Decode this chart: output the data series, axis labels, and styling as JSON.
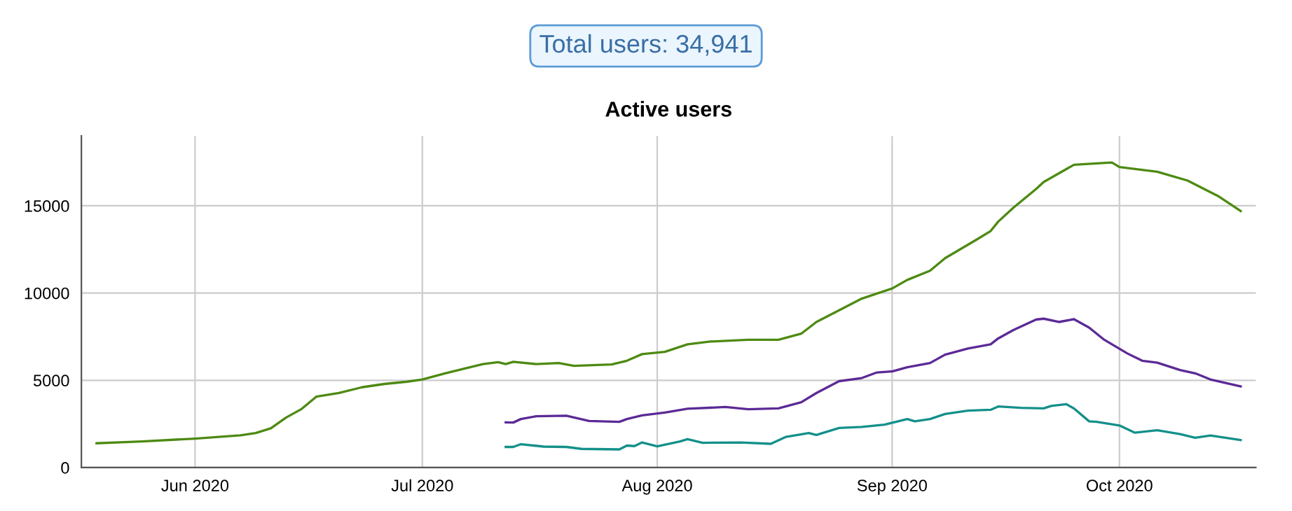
{
  "chart_data": {
    "type": "line",
    "title": "Active users",
    "annotations": [
      "Total users: 34,941"
    ],
    "xlim": [
      "2020-05-17",
      "2020-10-19"
    ],
    "ylim": [
      0,
      19000
    ],
    "yticks": [
      0,
      5000,
      10000,
      15000
    ],
    "xticks": [
      {
        "value": "2020-06-01",
        "label": "Jun 2020"
      },
      {
        "value": "2020-07-01",
        "label": "Jul 2020"
      },
      {
        "value": "2020-08-01",
        "label": "Aug 2020"
      },
      {
        "value": "2020-09-01",
        "label": "Sep 2020"
      },
      {
        "value": "2020-10-01",
        "label": "Oct 2020"
      }
    ],
    "grid": true,
    "legend": false,
    "marker": "none",
    "line_style": "solid",
    "series": [
      {
        "color": "#4d8a12",
        "x": [
          "2020-05-19",
          "2020-05-25",
          "2020-06-01",
          "2020-06-07",
          "2020-06-09",
          "2020-06-11",
          "2020-06-13",
          "2020-06-15",
          "2020-06-17",
          "2020-06-20",
          "2020-06-23",
          "2020-06-26",
          "2020-06-29",
          "2020-07-01",
          "2020-07-04",
          "2020-07-07",
          "2020-07-09",
          "2020-07-11",
          "2020-07-12",
          "2020-07-13",
          "2020-07-16",
          "2020-07-19",
          "2020-07-21",
          "2020-07-26",
          "2020-07-28",
          "2020-07-30",
          "2020-08-02",
          "2020-08-05",
          "2020-08-08",
          "2020-08-13",
          "2020-08-17",
          "2020-08-20",
          "2020-08-22",
          "2020-08-25",
          "2020-08-28",
          "2020-09-01",
          "2020-09-03",
          "2020-09-06",
          "2020-09-08",
          "2020-09-12",
          "2020-09-14",
          "2020-09-15",
          "2020-09-17",
          "2020-09-20",
          "2020-09-21",
          "2020-09-25",
          "2020-09-30",
          "2020-10-01",
          "2020-10-06",
          "2020-10-10",
          "2020-10-14",
          "2020-10-17"
        ],
        "values": [
          1390,
          1500,
          1660,
          1850,
          1980,
          2250,
          2860,
          3340,
          4060,
          4270,
          4600,
          4790,
          4920,
          5050,
          5400,
          5720,
          5930,
          6040,
          5930,
          6060,
          5930,
          5990,
          5830,
          5910,
          6120,
          6500,
          6630,
          7060,
          7220,
          7320,
          7320,
          7670,
          8340,
          9010,
          9680,
          10260,
          10750,
          11280,
          12000,
          13020,
          13550,
          14090,
          14890,
          15960,
          16360,
          17350,
          17480,
          17220,
          16950,
          16440,
          15560,
          14700
        ]
      },
      {
        "color": "#5b2a96",
        "x": [
          "2020-07-12",
          "2020-07-13",
          "2020-07-14",
          "2020-07-16",
          "2020-07-20",
          "2020-07-23",
          "2020-07-27",
          "2020-07-28",
          "2020-07-30",
          "2020-08-02",
          "2020-08-05",
          "2020-08-10",
          "2020-08-13",
          "2020-08-17",
          "2020-08-20",
          "2020-08-22",
          "2020-08-25",
          "2020-08-28",
          "2020-08-30",
          "2020-09-01",
          "2020-09-03",
          "2020-09-06",
          "2020-09-08",
          "2020-09-11",
          "2020-09-14",
          "2020-09-15",
          "2020-09-17",
          "2020-09-20",
          "2020-09-21",
          "2020-09-23",
          "2020-09-25",
          "2020-09-27",
          "2020-09-29",
          "2020-10-02",
          "2020-10-04",
          "2020-10-06",
          "2020-10-09",
          "2020-10-11",
          "2020-10-13",
          "2020-10-17"
        ],
        "values": [
          2590,
          2580,
          2780,
          2940,
          2970,
          2670,
          2620,
          2780,
          2990,
          3150,
          3370,
          3470,
          3340,
          3390,
          3740,
          4270,
          4950,
          5130,
          5450,
          5510,
          5750,
          5990,
          6470,
          6820,
          7060,
          7400,
          7880,
          8480,
          8530,
          8340,
          8500,
          8020,
          7320,
          6550,
          6120,
          6010,
          5590,
          5400,
          5050,
          4650
        ]
      },
      {
        "color": "#14908a",
        "x": [
          "2020-07-12",
          "2020-07-13",
          "2020-07-14",
          "2020-07-17",
          "2020-07-20",
          "2020-07-22",
          "2020-07-27",
          "2020-07-28",
          "2020-07-29",
          "2020-07-30",
          "2020-08-01",
          "2020-08-04",
          "2020-08-05",
          "2020-08-07",
          "2020-08-12",
          "2020-08-16",
          "2020-08-18",
          "2020-08-21",
          "2020-08-22",
          "2020-08-25",
          "2020-08-28",
          "2020-08-31",
          "2020-09-03",
          "2020-09-04",
          "2020-09-06",
          "2020-09-08",
          "2020-09-11",
          "2020-09-14",
          "2020-09-15",
          "2020-09-18",
          "2020-09-21",
          "2020-09-22",
          "2020-09-24",
          "2020-09-25",
          "2020-09-27",
          "2020-09-28",
          "2020-10-01",
          "2020-10-03",
          "2020-10-06",
          "2020-10-09",
          "2020-10-11",
          "2020-10-13",
          "2020-10-17"
        ],
        "values": [
          1180,
          1180,
          1340,
          1200,
          1180,
          1070,
          1040,
          1260,
          1230,
          1440,
          1220,
          1500,
          1630,
          1420,
          1440,
          1360,
          1760,
          1980,
          1870,
          2270,
          2330,
          2460,
          2780,
          2650,
          2780,
          3070,
          3260,
          3310,
          3500,
          3420,
          3390,
          3530,
          3630,
          3390,
          2650,
          2620,
          2410,
          2000,
          2140,
          1920,
          1710,
          1840,
          1580
        ]
      }
    ]
  }
}
